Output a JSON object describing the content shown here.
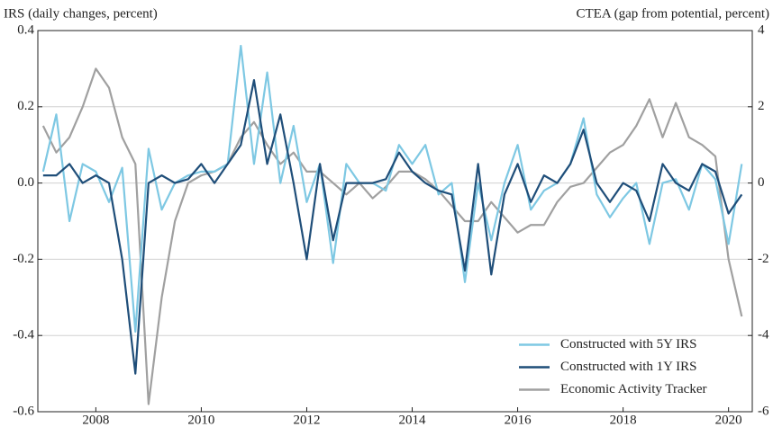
{
  "chart_data": {
    "type": "line",
    "y_label": "IRS (daily changes, percent)",
    "y2_label": "CTEA (gap from potential, percent)",
    "x": [
      2007.0,
      2007.25,
      2007.5,
      2007.75,
      2008.0,
      2008.25,
      2008.5,
      2008.75,
      2009.0,
      2009.25,
      2009.5,
      2009.75,
      2010.0,
      2010.25,
      2010.5,
      2010.75,
      2011.0,
      2011.25,
      2011.5,
      2011.75,
      2012.0,
      2012.25,
      2012.5,
      2012.75,
      2013.0,
      2013.25,
      2013.5,
      2013.75,
      2014.0,
      2014.25,
      2014.5,
      2014.75,
      2015.0,
      2015.25,
      2015.5,
      2015.75,
      2016.0,
      2016.25,
      2016.5,
      2016.75,
      2017.0,
      2017.25,
      2017.5,
      2017.75,
      2018.0,
      2018.25,
      2018.5,
      2018.75,
      2019.0,
      2019.25,
      2019.5,
      2019.75,
      2020.0,
      2020.25
    ],
    "xlim": [
      2006.9,
      2020.45
    ],
    "xticks": [
      2008,
      2010,
      2012,
      2014,
      2016,
      2018,
      2020
    ],
    "ylim": [
      -0.6,
      0.4
    ],
    "yticks": [
      -0.6,
      -0.4,
      -0.2,
      {
        "value": 0,
        "label": "0.0"
      },
      0.2,
      0.4
    ],
    "y2lim": [
      -6,
      4
    ],
    "y2ticks": [
      -6,
      -4,
      -2,
      0,
      2,
      4
    ],
    "grid": true,
    "legend": "lower right",
    "series": [
      {
        "name": "Constructed with 5Y IRS",
        "color": "#7ec8e3",
        "values": [
          0.03,
          0.18,
          -0.1,
          0.05,
          0.03,
          -0.05,
          0.04,
          -0.39,
          0.09,
          -0.07,
          0.0,
          0.02,
          0.03,
          0.03,
          0.05,
          0.36,
          0.05,
          0.29,
          0.0,
          0.15,
          -0.05,
          0.05,
          -0.21,
          0.05,
          0.0,
          0.0,
          -0.02,
          0.1,
          0.05,
          0.1,
          -0.03,
          0.0,
          -0.26,
          0.0,
          -0.15,
          0.0,
          0.1,
          -0.07,
          -0.02,
          0.0,
          0.05,
          0.17,
          -0.03,
          -0.09,
          -0.04,
          0.0,
          -0.16,
          0.0,
          0.01,
          -0.07,
          0.05,
          0.01,
          -0.16,
          0.05
        ]
      },
      {
        "name": "Constructed with 1Y IRS",
        "color": "#1f4e79",
        "values": [
          0.02,
          0.02,
          0.05,
          0.0,
          0.02,
          0.0,
          -0.2,
          -0.5,
          0.0,
          0.02,
          0.0,
          0.01,
          0.05,
          0.0,
          0.05,
          0.1,
          0.27,
          0.05,
          0.18,
          0.0,
          -0.2,
          0.05,
          -0.15,
          0.0,
          0.0,
          0.0,
          0.01,
          0.08,
          0.03,
          0.0,
          -0.02,
          -0.03,
          -0.23,
          0.05,
          -0.24,
          -0.03,
          0.05,
          -0.05,
          0.02,
          0.0,
          0.05,
          0.14,
          0.0,
          -0.05,
          0.0,
          -0.02,
          -0.1,
          0.05,
          0.0,
          -0.02,
          0.05,
          0.03,
          -0.08,
          -0.03
        ]
      },
      {
        "name": "Economic Activity Tracker",
        "color": "#a0a0a0",
        "axis": "y2",
        "values": [
          1.5,
          0.8,
          1.2,
          2.0,
          3.0,
          2.5,
          1.2,
          0.5,
          -5.8,
          -3.0,
          -1.0,
          0.0,
          0.2,
          0.3,
          0.5,
          1.2,
          1.6,
          1.0,
          0.5,
          0.8,
          0.3,
          0.3,
          0.0,
          -0.3,
          0.0,
          -0.4,
          -0.1,
          0.3,
          0.3,
          0.1,
          -0.2,
          -0.6,
          -1.0,
          -1.0,
          -0.5,
          -0.9,
          -1.3,
          -1.1,
          -1.1,
          -0.5,
          -0.1,
          0.0,
          0.4,
          0.8,
          1.0,
          1.5,
          2.2,
          1.2,
          2.1,
          1.2,
          1.0,
          0.7,
          -2.0,
          -3.5
        ]
      }
    ]
  }
}
